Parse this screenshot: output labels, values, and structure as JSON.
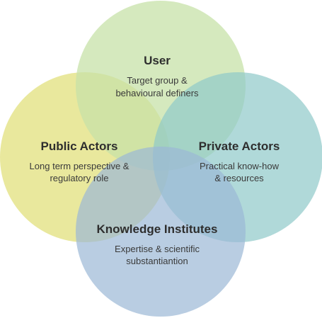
{
  "diagram": {
    "sets": [
      {
        "id": "public",
        "title": "Public Actors",
        "lines": [
          "Long term perspective &",
          "regulatory role"
        ],
        "color": "#e5e48c"
      },
      {
        "id": "user",
        "title": "User",
        "lines": [
          "Target group &",
          "behavioural definers"
        ],
        "color": "#c7e2a8"
      },
      {
        "id": "private",
        "title": "Private Actors",
        "lines": [
          "Practical know-how",
          "& resources"
        ],
        "color": "#8ec9c9"
      },
      {
        "id": "knowledge",
        "title": "Knowledge Institutes",
        "lines": [
          "Expertise & scientific",
          "substantiantion"
        ],
        "color": "#9bb8d6"
      }
    ]
  }
}
